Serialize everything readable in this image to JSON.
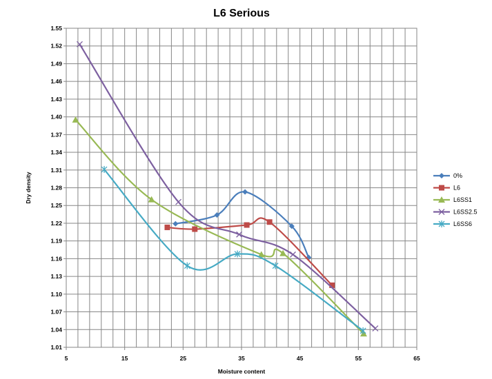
{
  "chart_data": {
    "type": "line",
    "title": "L6 Serious",
    "xlabel": "Moisture content",
    "ylabel": "Dry density",
    "xlim": [
      5,
      65
    ],
    "ylim": [
      1.01,
      1.55
    ],
    "xticks": [
      5,
      15,
      25,
      35,
      45,
      55,
      65
    ],
    "xtick_labels": [
      "5",
      "15",
      "25",
      "35",
      "45",
      "55",
      "65"
    ],
    "yticks": [
      1.01,
      1.04,
      1.07,
      1.1,
      1.13,
      1.16,
      1.19,
      1.22,
      1.25,
      1.28,
      1.31,
      1.34,
      1.37,
      1.4,
      1.43,
      1.46,
      1.49,
      1.52,
      1.55
    ],
    "ytick_labels": [
      "1.01",
      "1.04",
      "1.07",
      "1.10",
      "1.13",
      "1.16",
      "1.19",
      "1.22",
      "1.25",
      "1.28",
      "1.31",
      "1.34",
      "1.37",
      "1.40",
      "1.43",
      "1.46",
      "1.49",
      "1.52",
      "1.55"
    ],
    "grid": true,
    "legend_position": "right",
    "series": [
      {
        "name": "0%",
        "color": "#4a7ebb",
        "marker": "diamond",
        "points": [
          [
            23.7,
            1.219
          ],
          [
            30.8,
            1.234
          ],
          [
            35.6,
            1.273
          ],
          [
            43.6,
            1.215
          ],
          [
            46.5,
            1.162
          ]
        ]
      },
      {
        "name": "L6",
        "color": "#be4b48",
        "marker": "square",
        "points": [
          [
            22.3,
            1.213
          ],
          [
            27.0,
            1.21
          ],
          [
            35.9,
            1.217
          ],
          [
            39.8,
            1.222
          ],
          [
            50.5,
            1.115
          ]
        ]
      },
      {
        "name": "L6SS1",
        "color": "#98b954",
        "marker": "triangle",
        "points": [
          [
            6.6,
            1.395
          ],
          [
            19.6,
            1.26
          ],
          [
            38.4,
            1.167
          ],
          [
            42.1,
            1.169
          ],
          [
            55.9,
            1.033
          ]
        ]
      },
      {
        "name": "L6SS2.5",
        "color": "#7d60a0",
        "marker": "x",
        "points": [
          [
            7.3,
            1.523
          ],
          [
            24.2,
            1.256
          ],
          [
            34.6,
            1.201
          ],
          [
            43.8,
            1.167
          ],
          [
            57.9,
            1.042
          ]
        ]
      },
      {
        "name": "L6SS6",
        "color": "#46aac4",
        "marker": "star",
        "points": [
          [
            11.5,
            1.311
          ],
          [
            25.7,
            1.148
          ],
          [
            34.3,
            1.168
          ],
          [
            40.8,
            1.148
          ],
          [
            55.8,
            1.038
          ]
        ]
      }
    ]
  }
}
